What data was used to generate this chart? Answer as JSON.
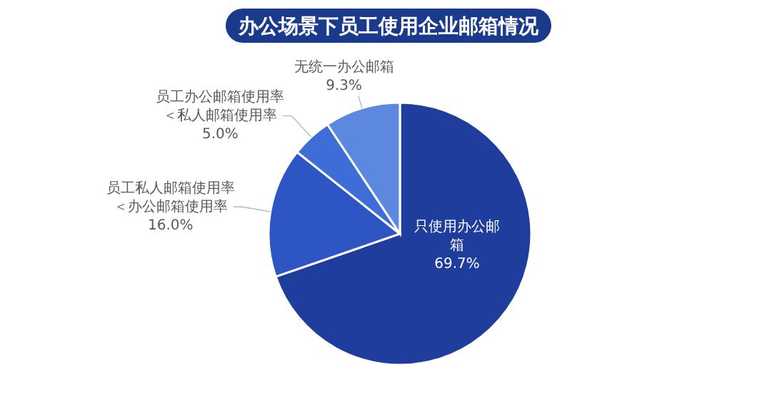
{
  "chart_data": {
    "type": "pie",
    "title": "办公场景下员工使用企业邮箱情况",
    "categories": [
      "只使用办公邮箱",
      "员工私人邮箱使用率＜办公邮箱使用率",
      "员工办公邮箱使用率＜私人邮箱使用率",
      "无统一办公邮箱"
    ],
    "values": [
      69.7,
      16.0,
      5.0,
      9.3
    ],
    "value_labels": [
      "69.7%",
      "16.0%",
      "5.0%",
      "9.3%"
    ],
    "colors": [
      "#1f3d9c",
      "#2d56c4",
      "#3f6dd8",
      "#5c88df"
    ]
  }
}
